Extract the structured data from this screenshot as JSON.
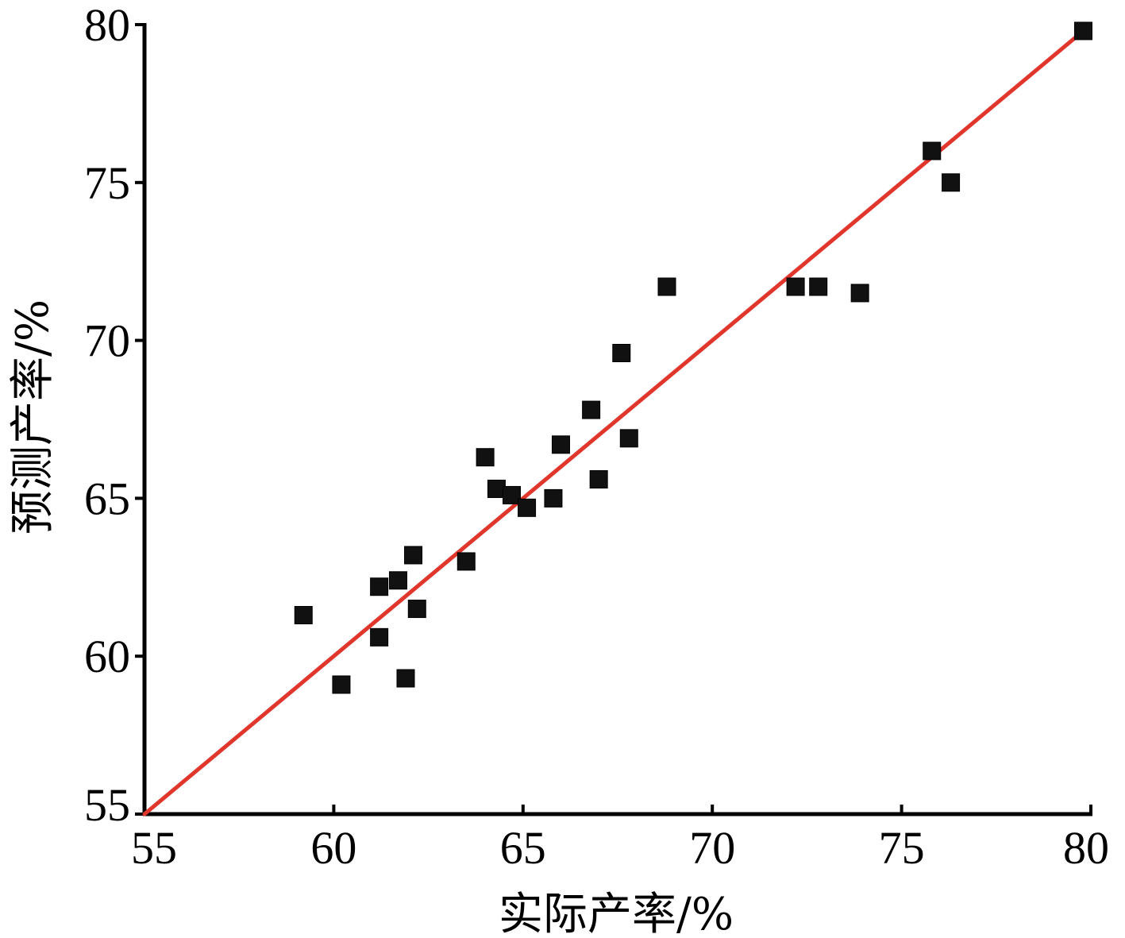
{
  "chart_data": {
    "type": "scatter",
    "title": "",
    "xlabel": "实际产率/%",
    "ylabel": "预测产率/%",
    "xlim": [
      55,
      80
    ],
    "ylim": [
      55,
      80
    ],
    "xticks": [
      "55",
      "60",
      "65",
      "70",
      "75",
      "80"
    ],
    "yticks": [
      "55",
      "60",
      "65",
      "70",
      "75",
      "80"
    ],
    "grid": false,
    "legend": "none",
    "series": [
      {
        "marker": "square",
        "color": "#111111",
        "points": [
          {
            "x": 59.2,
            "y": 61.3
          },
          {
            "x": 60.2,
            "y": 59.1
          },
          {
            "x": 61.2,
            "y": 62.2
          },
          {
            "x": 61.2,
            "y": 60.6
          },
          {
            "x": 61.7,
            "y": 62.4
          },
          {
            "x": 61.9,
            "y": 59.3
          },
          {
            "x": 62.1,
            "y": 63.2
          },
          {
            "x": 62.2,
            "y": 61.5
          },
          {
            "x": 63.5,
            "y": 63.0
          },
          {
            "x": 64.0,
            "y": 66.3
          },
          {
            "x": 64.3,
            "y": 65.3
          },
          {
            "x": 64.7,
            "y": 65.1
          },
          {
            "x": 65.1,
            "y": 64.7
          },
          {
            "x": 65.8,
            "y": 65.0
          },
          {
            "x": 66.0,
            "y": 66.7
          },
          {
            "x": 66.8,
            "y": 67.8
          },
          {
            "x": 67.0,
            "y": 65.6
          },
          {
            "x": 67.6,
            "y": 69.6
          },
          {
            "x": 67.8,
            "y": 66.9
          },
          {
            "x": 68.8,
            "y": 71.7
          },
          {
            "x": 72.2,
            "y": 71.7
          },
          {
            "x": 72.8,
            "y": 71.7
          },
          {
            "x": 73.9,
            "y": 71.5
          },
          {
            "x": 75.8,
            "y": 76.0
          },
          {
            "x": 76.3,
            "y": 75.0
          },
          {
            "x": 79.8,
            "y": 79.8
          }
        ]
      }
    ],
    "reference_line": {
      "type": "y=x",
      "from": [
        55,
        55
      ],
      "to": [
        79.8,
        79.8
      ],
      "color": "#e0362c"
    },
    "axis_color": "#000000"
  }
}
